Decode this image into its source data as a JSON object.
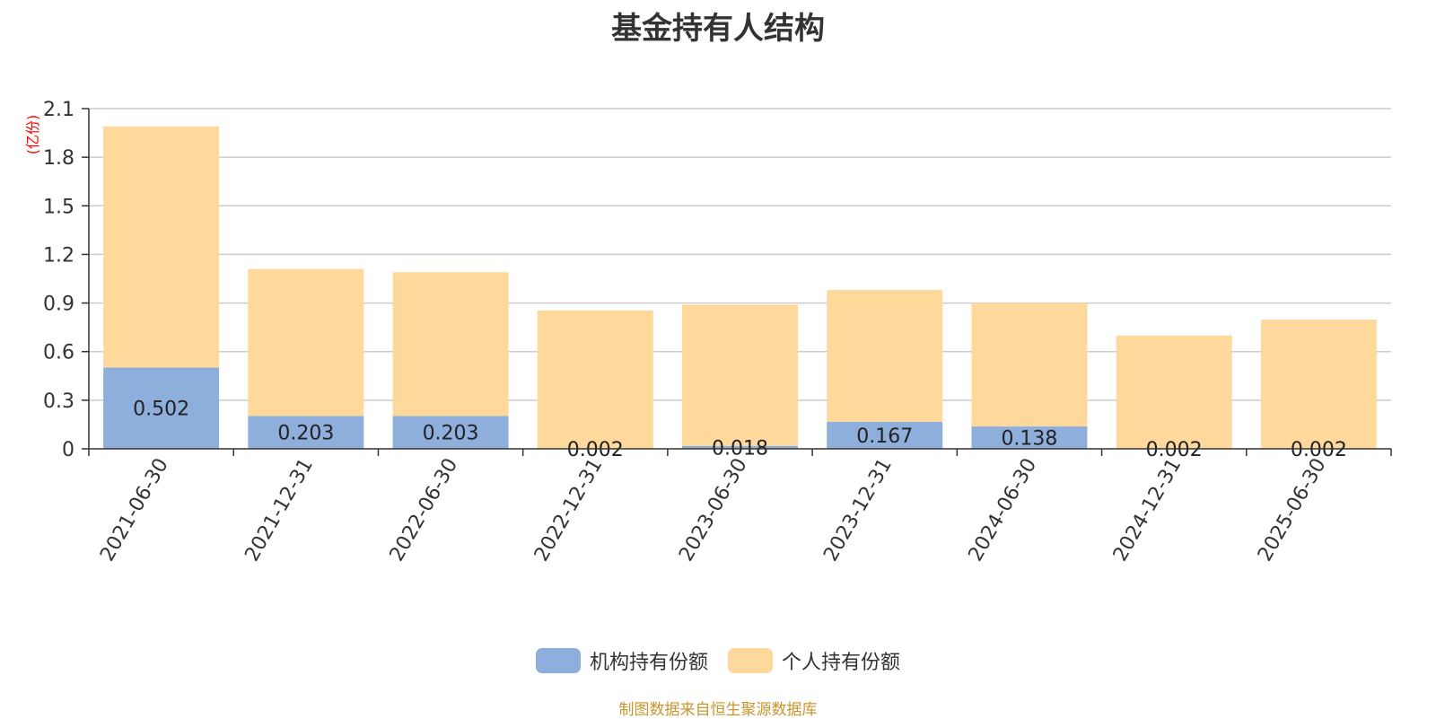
{
  "chart_data": {
    "type": "bar",
    "stacked": true,
    "title": "基金持有人结构",
    "ylabel": "(亿份)",
    "ylim": [
      0,
      2.1
    ],
    "yticks": [
      "0",
      "0.3",
      "0.6",
      "0.9",
      "1.2",
      "1.5",
      "1.8",
      "2.1"
    ],
    "categories": [
      "2021-06-30",
      "2021-12-31",
      "2022-06-30",
      "2022-12-31",
      "2023-06-30",
      "2023-12-31",
      "2024-06-30",
      "2024-12-31",
      "2025-06-30"
    ],
    "series": [
      {
        "name": "机构持有份额",
        "color": "#8eaedb",
        "values": [
          0.502,
          0.203,
          0.203,
          0.002,
          0.018,
          0.167,
          0.138,
          0.002,
          0.002
        ],
        "labels": [
          "0.502",
          "0.203",
          "0.203",
          "0.002",
          "0.018",
          "0.167",
          "0.138",
          "0.002",
          "0.002"
        ]
      },
      {
        "name": "个人持有份额",
        "color": "#fed99b",
        "values": [
          1.488,
          0.907,
          0.887,
          0.852,
          0.872,
          0.813,
          0.762,
          0.697,
          0.795
        ]
      }
    ],
    "grid": true,
    "legend_position": "bottom-center"
  },
  "source_note": "制图数据来自恒生聚源数据库"
}
